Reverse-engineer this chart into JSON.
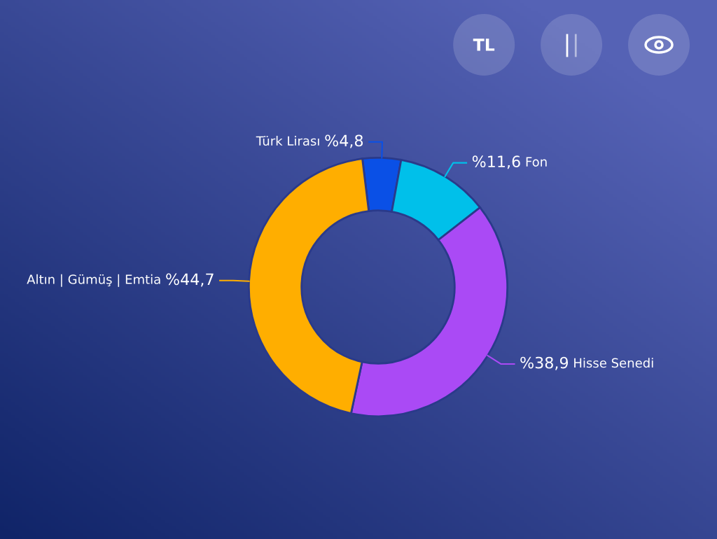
{
  "chart_data": {
    "type": "donut",
    "categories": [
      "Türk Lirası",
      "Fon",
      "Hisse Senedi",
      "Altın | Gümüş | Emtia"
    ],
    "values": [
      4.8,
      11.6,
      38.9,
      44.7
    ],
    "value_labels": [
      "%4,8",
      "%11,6",
      "%38,9",
      "%44,7"
    ],
    "colors": [
      "#0a50e6",
      "#00c0ea",
      "#aa4af5",
      "#ffae00"
    ],
    "annotations": [
      "TL"
    ]
  }
}
